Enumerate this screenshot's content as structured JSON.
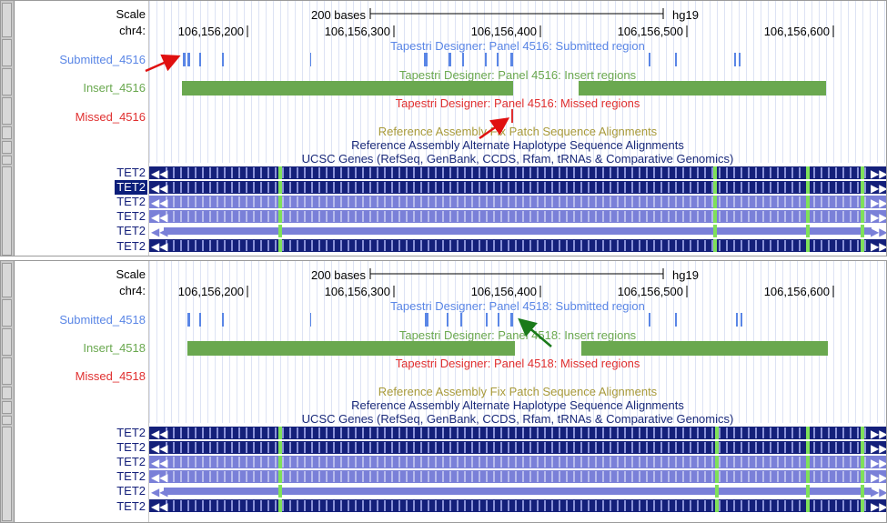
{
  "panels": [
    {
      "scale_label": "Scale",
      "chrom_label": "chr4:",
      "scale_text": "200 bases",
      "assembly": "hg19",
      "positions": [
        "106,156,200",
        "106,156,300",
        "106,156,400",
        "106,156,500",
        "106,156,600"
      ],
      "tracks": {
        "submitted": {
          "label": "Submitted_4516",
          "title": "Tapestri Designer: Panel 4516: Submitted region"
        },
        "insert": {
          "label": "Insert_4516",
          "title": "Tapestri Designer: Panel 4516: Insert regions"
        },
        "missed": {
          "label": "Missed_4516",
          "title": "Tapestri Designer: Panel 4516: Missed regions"
        }
      },
      "fix_patch": "Reference Assembly Fix Patch Sequence Alignments",
      "alt_haplotype": "Reference Assembly Alternate Haplotype Sequence Alignments",
      "ucsc_genes": "UCSC Genes (RefSeq, GenBank, CCDS, Rfam, tRNAs & Comparative Genomics)",
      "gene_rows": [
        "TET2",
        "TET2",
        "TET2",
        "TET2",
        "TET2",
        "TET2"
      ],
      "highlighted_row": 1
    },
    {
      "scale_label": "Scale",
      "chrom_label": "chr4:",
      "scale_text": "200 bases",
      "assembly": "hg19",
      "positions": [
        "106,156,200",
        "106,156,300",
        "106,156,400",
        "106,156,500",
        "106,156,600"
      ],
      "tracks": {
        "submitted": {
          "label": "Submitted_4518",
          "title": "Tapestri Designer: Panel 4518: Submitted region"
        },
        "insert": {
          "label": "Insert_4518",
          "title": "Tapestri Designer: Panel 4518: Insert regions"
        },
        "missed": {
          "label": "Missed_4518",
          "title": "Tapestri Designer: Panel 4518: Missed regions"
        }
      },
      "fix_patch": "Reference Assembly Fix Patch Sequence Alignments",
      "alt_haplotype": "Reference Assembly Alternate Haplotype Sequence Alignments",
      "ucsc_genes": "UCSC Genes (RefSeq, GenBank, CCDS, Rfam, tRNAs & Comparative Genomics)",
      "gene_rows": [
        "TET2",
        "TET2",
        "TET2",
        "TET2",
        "TET2",
        "TET2"
      ],
      "highlighted_row": -1
    }
  ],
  "colors": {
    "submitted": "#5a86e6",
    "insert": "#6aa84f",
    "missed": "#e03030",
    "fix_patch": "#a89a3a",
    "alt_haplotype": "#1a2a7a",
    "gene_dark": "#14207a",
    "gene_light": "#7a80d8",
    "exon": "#7fe05a",
    "red_arrow": "#e01010",
    "green_arrow": "#1a7a1a"
  }
}
